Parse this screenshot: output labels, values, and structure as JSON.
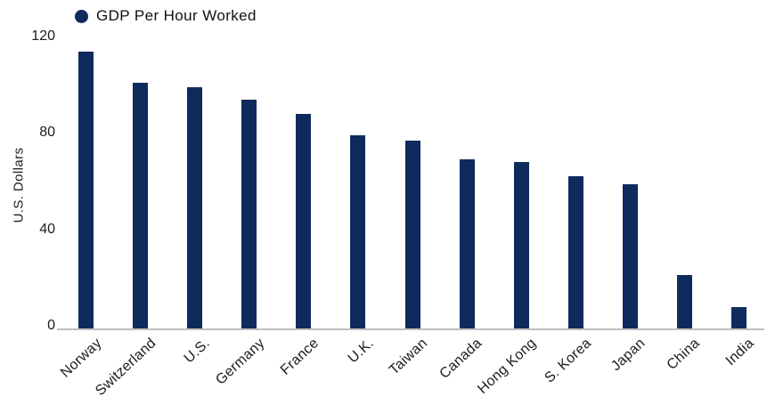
{
  "chart_data": {
    "type": "bar",
    "legend": "GDP Per Hour Worked",
    "ylabel": "U.S. Dollars",
    "categories": [
      "Norway",
      "Switzerland",
      "U.S.",
      "Germany",
      "France",
      "U.K.",
      "Taiwan",
      "Canada",
      "Hong Kong",
      "S. Korea",
      "Japan",
      "China",
      "India"
    ],
    "values": [
      115,
      102,
      100,
      95,
      89,
      80,
      78,
      70,
      69,
      63,
      60,
      22,
      9
    ],
    "yticks": [
      0,
      40,
      80,
      120
    ],
    "ylim": [
      0,
      120
    ],
    "grid": false,
    "legend_position": "top-left",
    "bar_color": "#0f2b5d",
    "axis_line_color": "#bfbfbf",
    "text_color": "#1c1c1c",
    "background": "#ffffff"
  }
}
